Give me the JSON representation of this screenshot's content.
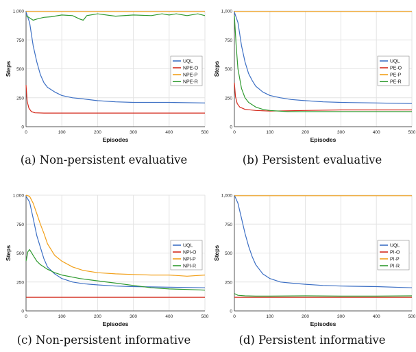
{
  "colors": {
    "UQL": "#3c6fc4",
    "O": "#d42a1c",
    "P": "#f2a019",
    "R": "#2f9a2f",
    "grid": "#e3e3e3",
    "axis": "#555555"
  },
  "chart_data": [
    {
      "type": "line",
      "caption": "(a) Non-persistent evaluative",
      "xlabel": "Episodes",
      "ylabel": "Steps",
      "xlim": [
        0,
        500
      ],
      "ylim": [
        0,
        1000
      ],
      "xticks": [
        "0",
        "100",
        "200",
        "300",
        "400",
        "500"
      ],
      "yticks": [
        "0",
        "250",
        "500",
        "750",
        "1,000"
      ],
      "grid": true,
      "legend": "center-right",
      "series": [
        {
          "name": "UQL",
          "color_key": "UQL",
          "points": [
            [
              0,
              990
            ],
            [
              10,
              900
            ],
            [
              20,
              700
            ],
            [
              30,
              560
            ],
            [
              40,
              450
            ],
            [
              50,
              380
            ],
            [
              60,
              340
            ],
            [
              80,
              300
            ],
            [
              100,
              270
            ],
            [
              130,
              250
            ],
            [
              160,
              240
            ],
            [
              200,
              225
            ],
            [
              250,
              215
            ],
            [
              300,
              210
            ],
            [
              400,
              210
            ],
            [
              500,
              205
            ]
          ]
        },
        {
          "name": "NPE-O",
          "color_key": "O",
          "points": [
            [
              0,
              360
            ],
            [
              3,
              220
            ],
            [
              8,
              160
            ],
            [
              15,
              130
            ],
            [
              25,
              120
            ],
            [
              50,
              118
            ],
            [
              100,
              118
            ],
            [
              200,
              118
            ],
            [
              300,
              118
            ],
            [
              400,
              118
            ],
            [
              500,
              118
            ]
          ]
        },
        {
          "name": "NPE-P",
          "color_key": "P",
          "points": [
            [
              0,
              995
            ],
            [
              100,
              995
            ],
            [
              200,
              995
            ],
            [
              300,
              995
            ],
            [
              400,
              995
            ],
            [
              500,
              995
            ]
          ]
        },
        {
          "name": "NPE-R",
          "color_key": "R",
          "points": [
            [
              0,
              960
            ],
            [
              10,
              940
            ],
            [
              20,
              920
            ],
            [
              30,
              930
            ],
            [
              50,
              945
            ],
            [
              70,
              950
            ],
            [
              100,
              965
            ],
            [
              130,
              960
            ],
            [
              150,
              930
            ],
            [
              160,
              920
            ],
            [
              170,
              960
            ],
            [
              200,
              975
            ],
            [
              250,
              955
            ],
            [
              300,
              965
            ],
            [
              350,
              960
            ],
            [
              380,
              975
            ],
            [
              400,
              965
            ],
            [
              420,
              975
            ],
            [
              450,
              960
            ],
            [
              480,
              975
            ],
            [
              500,
              960
            ]
          ]
        }
      ]
    },
    {
      "type": "line",
      "caption": "(b) Persistent evaluative",
      "xlabel": "Episodes",
      "ylabel": "Steps",
      "xlim": [
        0,
        500
      ],
      "ylim": [
        0,
        1000
      ],
      "xticks": [
        "0",
        "100",
        "200",
        "300",
        "400",
        "500"
      ],
      "yticks": [
        "0",
        "250",
        "500",
        "750",
        "1,000"
      ],
      "grid": true,
      "legend": "center-right",
      "series": [
        {
          "name": "UQL",
          "color_key": "UQL",
          "points": [
            [
              0,
              990
            ],
            [
              10,
              900
            ],
            [
              20,
              700
            ],
            [
              30,
              560
            ],
            [
              40,
              460
            ],
            [
              50,
              400
            ],
            [
              60,
              350
            ],
            [
              80,
              300
            ],
            [
              100,
              270
            ],
            [
              130,
              250
            ],
            [
              160,
              235
            ],
            [
              200,
              225
            ],
            [
              250,
              215
            ],
            [
              300,
              210
            ],
            [
              400,
              205
            ],
            [
              500,
              200
            ]
          ]
        },
        {
          "name": "PE-O",
          "color_key": "O",
          "points": [
            [
              0,
              380
            ],
            [
              3,
              260
            ],
            [
              8,
              200
            ],
            [
              15,
              170
            ],
            [
              30,
              150
            ],
            [
              60,
              140
            ],
            [
              100,
              135
            ],
            [
              200,
              140
            ],
            [
              300,
              145
            ],
            [
              400,
              145
            ],
            [
              500,
              145
            ]
          ]
        },
        {
          "name": "PE-P",
          "color_key": "P",
          "points": [
            [
              0,
              995
            ],
            [
              100,
              995
            ],
            [
              200,
              995
            ],
            [
              300,
              995
            ],
            [
              400,
              995
            ],
            [
              500,
              995
            ]
          ]
        },
        {
          "name": "PE-R",
          "color_key": "R",
          "points": [
            [
              0,
              960
            ],
            [
              5,
              700
            ],
            [
              10,
              500
            ],
            [
              20,
              330
            ],
            [
              30,
              250
            ],
            [
              40,
              210
            ],
            [
              60,
              170
            ],
            [
              80,
              150
            ],
            [
              100,
              140
            ],
            [
              150,
              130
            ],
            [
              200,
              130
            ],
            [
              300,
              130
            ],
            [
              400,
              130
            ],
            [
              500,
              130
            ]
          ]
        }
      ]
    },
    {
      "type": "line",
      "caption": "(c) Non-persistent informative",
      "xlabel": "Episodes",
      "ylabel": "Steps",
      "xlim": [
        0,
        500
      ],
      "ylim": [
        0,
        1000
      ],
      "xticks": [
        "0",
        "100",
        "200",
        "300",
        "400",
        "500"
      ],
      "yticks": [
        "0",
        "250",
        "500",
        "750",
        "1,000"
      ],
      "grid": true,
      "legend": "center-right",
      "series": [
        {
          "name": "UQL",
          "color_key": "UQL",
          "points": [
            [
              0,
              990
            ],
            [
              10,
              940
            ],
            [
              20,
              800
            ],
            [
              30,
              650
            ],
            [
              40,
              550
            ],
            [
              50,
              450
            ],
            [
              60,
              380
            ],
            [
              80,
              320
            ],
            [
              100,
              280
            ],
            [
              130,
              250
            ],
            [
              160,
              235
            ],
            [
              200,
              225
            ],
            [
              250,
              215
            ],
            [
              300,
              210
            ],
            [
              400,
              205
            ],
            [
              500,
              200
            ]
          ]
        },
        {
          "name": "NPI-O",
          "color_key": "O",
          "points": [
            [
              0,
              118
            ],
            [
              100,
              118
            ],
            [
              200,
              118
            ],
            [
              300,
              118
            ],
            [
              400,
              118
            ],
            [
              500,
              118
            ]
          ]
        },
        {
          "name": "NPI-P",
          "color_key": "P",
          "points": [
            [
              0,
              1000
            ],
            [
              10,
              990
            ],
            [
              20,
              930
            ],
            [
              30,
              840
            ],
            [
              40,
              750
            ],
            [
              50,
              670
            ],
            [
              60,
              580
            ],
            [
              80,
              480
            ],
            [
              100,
              430
            ],
            [
              130,
              380
            ],
            [
              160,
              350
            ],
            [
              200,
              330
            ],
            [
              250,
              320
            ],
            [
              300,
              315
            ],
            [
              350,
              310
            ],
            [
              400,
              310
            ],
            [
              450,
              300
            ],
            [
              500,
              310
            ]
          ]
        },
        {
          "name": "NPI-R",
          "color_key": "R",
          "points": [
            [
              0,
              430
            ],
            [
              5,
              510
            ],
            [
              10,
              530
            ],
            [
              20,
              480
            ],
            [
              30,
              430
            ],
            [
              40,
              400
            ],
            [
              60,
              360
            ],
            [
              80,
              330
            ],
            [
              100,
              310
            ],
            [
              150,
              280
            ],
            [
              200,
              260
            ],
            [
              250,
              240
            ],
            [
              300,
              220
            ],
            [
              350,
              200
            ],
            [
              400,
              190
            ],
            [
              450,
              185
            ],
            [
              500,
              180
            ]
          ]
        }
      ]
    },
    {
      "type": "line",
      "caption": "(d) Persistent informative",
      "xlabel": "Episodes",
      "ylabel": "Steps",
      "xlim": [
        0,
        500
      ],
      "ylim": [
        0,
        1000
      ],
      "xticks": [
        "0",
        "100",
        "200",
        "300",
        "400",
        "500"
      ],
      "yticks": [
        "0",
        "250",
        "500",
        "750",
        "1,000"
      ],
      "grid": true,
      "legend": "center-right",
      "series": [
        {
          "name": "UQL",
          "color_key": "UQL",
          "points": [
            [
              0,
              1000
            ],
            [
              10,
              930
            ],
            [
              20,
              800
            ],
            [
              30,
              670
            ],
            [
              40,
              560
            ],
            [
              50,
              470
            ],
            [
              60,
              400
            ],
            [
              80,
              320
            ],
            [
              100,
              280
            ],
            [
              130,
              250
            ],
            [
              160,
              240
            ],
            [
              200,
              230
            ],
            [
              250,
              220
            ],
            [
              300,
              215
            ],
            [
              400,
              210
            ],
            [
              500,
              200
            ]
          ]
        },
        {
          "name": "PI-O",
          "color_key": "O",
          "points": [
            [
              0,
              118
            ],
            [
              100,
              118
            ],
            [
              200,
              118
            ],
            [
              300,
              118
            ],
            [
              400,
              118
            ],
            [
              500,
              118
            ]
          ]
        },
        {
          "name": "PI-P",
          "color_key": "P",
          "points": [
            [
              0,
              995
            ],
            [
              100,
              995
            ],
            [
              200,
              995
            ],
            [
              300,
              995
            ],
            [
              400,
              995
            ],
            [
              500,
              995
            ]
          ]
        },
        {
          "name": "PI-R",
          "color_key": "R",
          "points": [
            [
              0,
              150
            ],
            [
              10,
              135
            ],
            [
              30,
              130
            ],
            [
              60,
              128
            ],
            [
              100,
              128
            ],
            [
              200,
              130
            ],
            [
              300,
              128
            ],
            [
              400,
              128
            ],
            [
              500,
              130
            ]
          ]
        }
      ]
    }
  ]
}
